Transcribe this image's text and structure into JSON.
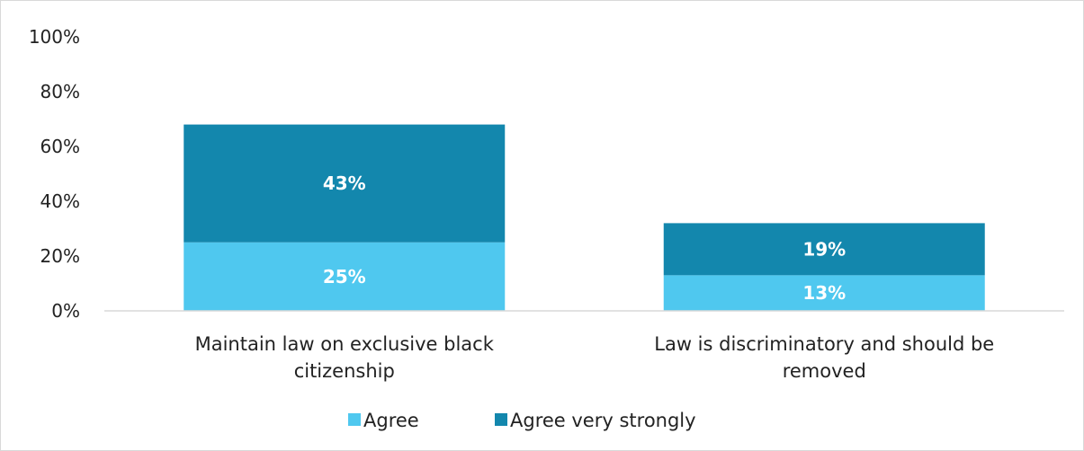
{
  "chart_data": {
    "type": "bar",
    "stacked": true,
    "categories": [
      "Maintain law on exclusive black citizenship",
      "Law is discriminatory and should be removed"
    ],
    "category_label_lines": [
      [
        "Maintain law on exclusive black",
        "citizenship"
      ],
      [
        "Law is discriminatory and should be",
        "removed"
      ]
    ],
    "series": [
      {
        "name": "Agree",
        "values": [
          25,
          13
        ],
        "labels": [
          "25%",
          "13%"
        ],
        "color": "#4fc8ef"
      },
      {
        "name": "Agree very strongly",
        "values": [
          43,
          19
        ],
        "labels": [
          "43%",
          "19%"
        ],
        "color": "#1387ad"
      }
    ],
    "ylim": [
      0,
      100
    ],
    "yticks": [
      0,
      20,
      40,
      60,
      80,
      100
    ],
    "ytick_labels": [
      "0%",
      "20%",
      "40%",
      "60%",
      "80%",
      "100%"
    ],
    "title": "",
    "xlabel": "",
    "ylabel": "",
    "grid": false,
    "legend_position": "bottom"
  }
}
